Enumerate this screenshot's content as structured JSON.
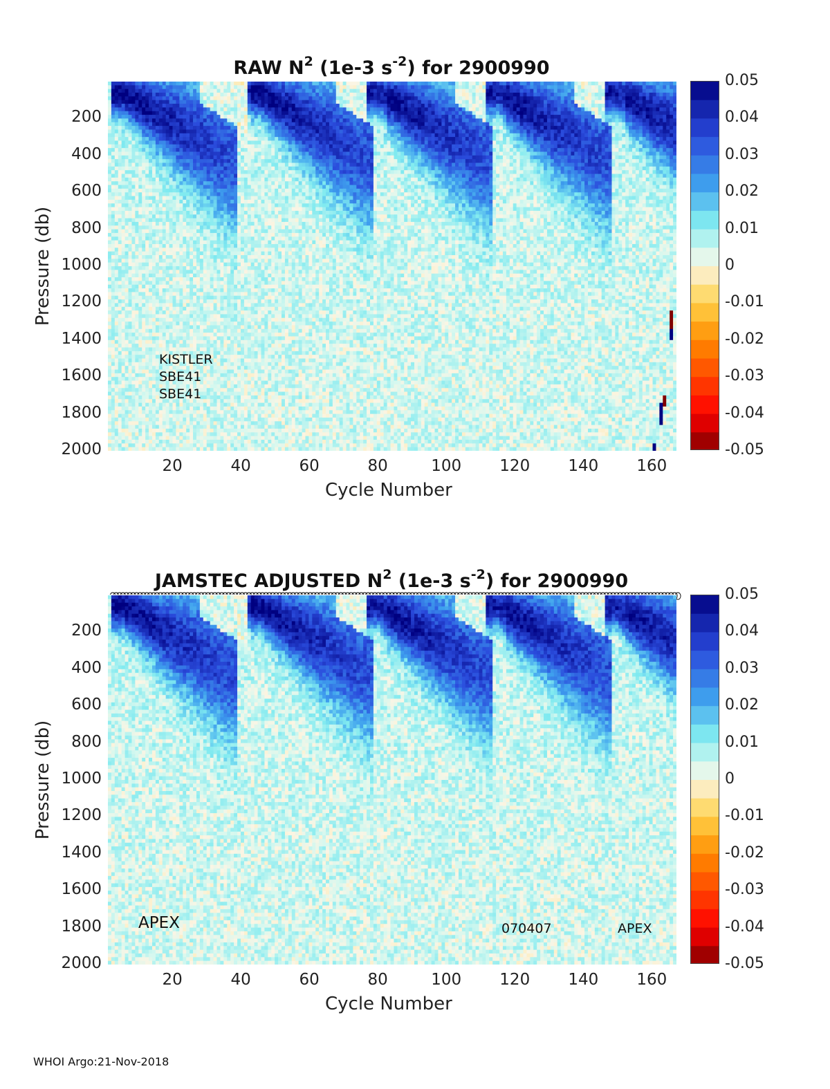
{
  "chart_data": [
    {
      "type": "heatmap",
      "title_main": "RAW N",
      "title_sup1": "2",
      "title_mid": " (1e-3 s",
      "title_sup2": "-2",
      "title_end": ") for 2900990",
      "xlabel": "Cycle Number",
      "ylabel": "Pressure (db)",
      "xlim": [
        1,
        167
      ],
      "ylim": [
        0,
        2000
      ],
      "x_ticks": [
        "20",
        "40",
        "60",
        "80",
        "100",
        "120",
        "140",
        "160"
      ],
      "y_ticks": [
        "200",
        "400",
        "600",
        "800",
        "1000",
        "1200",
        "1400",
        "1600",
        "1800",
        "2000"
      ],
      "colorbar_ticks": [
        "0.05",
        "0.04",
        "0.03",
        "0.02",
        "0.01",
        "0",
        "-0.01",
        "-0.02",
        "-0.03",
        "-0.04",
        "-0.05"
      ],
      "clim": [
        -0.05,
        0.05
      ],
      "annotations": [
        "KISTLER",
        "SBE41",
        "SBE41"
      ],
      "anomalies": [
        {
          "cycle": 166,
          "p_from": 1240,
          "p_to": 1340,
          "value": -0.05
        },
        {
          "cycle": 166,
          "p_from": 1340,
          "p_to": 1390,
          "value": 0.05
        },
        {
          "cycle": 164,
          "p_from": 1700,
          "p_to": 1750,
          "value": -0.05
        },
        {
          "cycle": 163,
          "p_from": 1750,
          "p_to": 1850,
          "value": 0.05
        },
        {
          "cycle": 161,
          "p_from": 1960,
          "p_to": 2000,
          "value": 0.05
        }
      ]
    },
    {
      "type": "heatmap",
      "title_main": "JAMSTEC  ADJUSTED N",
      "title_sup1": "2",
      "title_mid": " (1e-3 s",
      "title_sup2": "-2",
      "title_end": ") for 2900990",
      "xlabel": "Cycle Number",
      "ylabel": "Pressure (db)",
      "xlim": [
        1,
        167
      ],
      "ylim": [
        0,
        2000
      ],
      "x_ticks": [
        "20",
        "40",
        "60",
        "80",
        "100",
        "120",
        "140",
        "160"
      ],
      "y_ticks": [
        "200",
        "400",
        "600",
        "800",
        "1000",
        "1200",
        "1400",
        "1600",
        "1800",
        "2000"
      ],
      "colorbar_ticks": [
        "0.05",
        "0.04",
        "0.03",
        "0.02",
        "0.01",
        "0",
        "-0.01",
        "-0.02",
        "-0.03",
        "-0.04",
        "-0.05"
      ],
      "clim": [
        -0.05,
        0.05
      ],
      "annotations": [
        "APEX",
        "070407",
        "APEX"
      ],
      "qc_markers_row": true
    }
  ],
  "field_structure": {
    "summer_stratification_cycles": [
      5,
      45,
      80,
      115,
      150
    ],
    "deep_value": 0.007,
    "surface_mixed_value": 0.0
  },
  "colors": {
    "deep_red": "#800000",
    "red": "#ff0000",
    "orange": "#ff8c00",
    "yellow": "#ffd24a",
    "neutral": "#fbf5e4",
    "pale_cyan": "#d6f8ef",
    "cyan": "#80eaf0",
    "light_blue": "#3fa0ee",
    "blue": "#2a4bdc",
    "navy": "#000080"
  },
  "footer": "WHOI Argo:21-Nov-2018"
}
